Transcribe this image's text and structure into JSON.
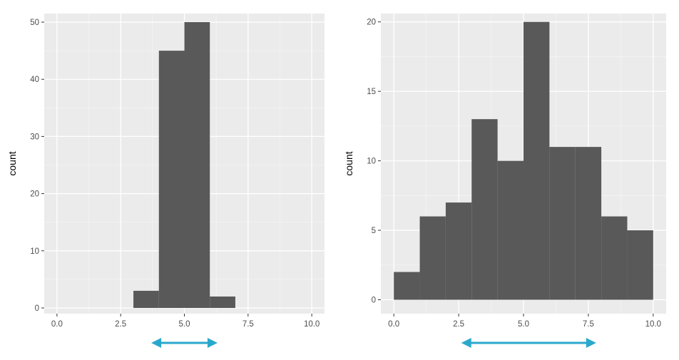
{
  "chart_data": [
    {
      "type": "bar",
      "title": "",
      "xlabel": "",
      "ylabel": "count",
      "xlim": [
        -0.5,
        10.5
      ],
      "ylim": [
        -1,
        51.5
      ],
      "x_ticks": [
        0,
        2.5,
        5,
        7.5,
        10
      ],
      "x_tick_labels": [
        "0.0",
        "2.5",
        "5.0",
        "7.5",
        "10.0"
      ],
      "y_ticks": [
        0,
        10,
        20,
        30,
        40,
        50
      ],
      "y_tick_labels": [
        "0",
        "10",
        "20",
        "30",
        "40",
        "50"
      ],
      "bins": [
        {
          "x_start": 3,
          "x_end": 4,
          "count": 3
        },
        {
          "x_start": 4,
          "x_end": 5,
          "count": 45
        },
        {
          "x_start": 5,
          "x_end": 6,
          "count": 50
        },
        {
          "x_start": 6,
          "x_end": 7,
          "count": 2
        }
      ],
      "spread_arrow": {
        "from": 3.7,
        "to": 6.3
      },
      "grid": true
    },
    {
      "type": "bar",
      "title": "",
      "xlabel": "",
      "ylabel": "count",
      "xlim": [
        -0.5,
        10.5
      ],
      "ylim": [
        -1,
        20.6
      ],
      "x_ticks": [
        0,
        2.5,
        5,
        7.5,
        10
      ],
      "x_tick_labels": [
        "0.0",
        "2.5",
        "5.0",
        "7.5",
        "10.0"
      ],
      "y_ticks": [
        0,
        5,
        10,
        15,
        20
      ],
      "y_tick_labels": [
        "0",
        "5",
        "10",
        "15",
        "20"
      ],
      "bins": [
        {
          "x_start": 0,
          "x_end": 1,
          "count": 2
        },
        {
          "x_start": 1,
          "x_end": 2,
          "count": 6
        },
        {
          "x_start": 2,
          "x_end": 3,
          "count": 7
        },
        {
          "x_start": 3,
          "x_end": 4,
          "count": 13
        },
        {
          "x_start": 4,
          "x_end": 5,
          "count": 10
        },
        {
          "x_start": 5,
          "x_end": 6,
          "count": 20
        },
        {
          "x_start": 6,
          "x_end": 7,
          "count": 11
        },
        {
          "x_start": 7,
          "x_end": 8,
          "count": 11
        },
        {
          "x_start": 8,
          "x_end": 9,
          "count": 6
        },
        {
          "x_start": 9,
          "x_end": 10,
          "count": 5
        }
      ],
      "spread_arrow": {
        "from": 2.6,
        "to": 7.8
      },
      "grid": true
    }
  ],
  "colors": {
    "panel_background": "#ebebeb",
    "grid_major": "#ffffff",
    "bar_fill": "#595959",
    "arrow": "#2aa8cc",
    "tick_text": "#4d4d4d"
  }
}
